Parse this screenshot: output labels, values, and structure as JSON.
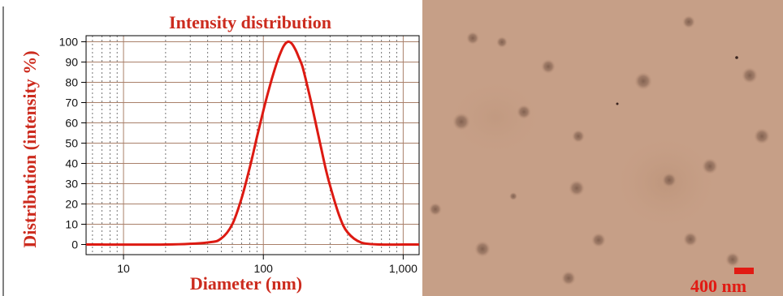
{
  "chart_data": {
    "type": "line",
    "title": "Intensity distribution",
    "xlabel": "Diameter (nm)",
    "ylabel": "Distribution (intensity %)",
    "x_scale": "log",
    "xlim": [
      5.4,
      1300
    ],
    "ylim": [
      -5,
      103
    ],
    "x_ticks": [
      10,
      100,
      1000
    ],
    "x_tick_labels": [
      "10",
      "100",
      "1,000"
    ],
    "y_ticks": [
      0,
      10,
      20,
      30,
      40,
      50,
      60,
      70,
      80,
      90,
      100
    ],
    "y_tick_labels": [
      "0",
      "10",
      "20",
      "30",
      "40",
      "50",
      "60",
      "70",
      "80",
      "90",
      "100"
    ],
    "grid": true,
    "series": [
      {
        "color": "#dd1a12",
        "x": [
          5.4,
          20,
          40,
          50,
          60,
          70,
          80,
          90,
          100,
          110,
          120,
          130,
          140,
          150,
          160,
          170,
          180,
          190,
          200,
          220,
          240,
          260,
          280,
          300,
          350,
          400,
          500,
          700,
          1000,
          1300
        ],
        "y": [
          0,
          0,
          1,
          3,
          10,
          23,
          38,
          53,
          66,
          77,
          86,
          93,
          98,
          100,
          99,
          96,
          92,
          88,
          82,
          70,
          58,
          47,
          37,
          29,
          14,
          6,
          1,
          0,
          0,
          0
        ]
      }
    ]
  },
  "tem_image": {
    "scale_bar_label": "400 nm",
    "scale_bar_color": "#e11b14"
  }
}
